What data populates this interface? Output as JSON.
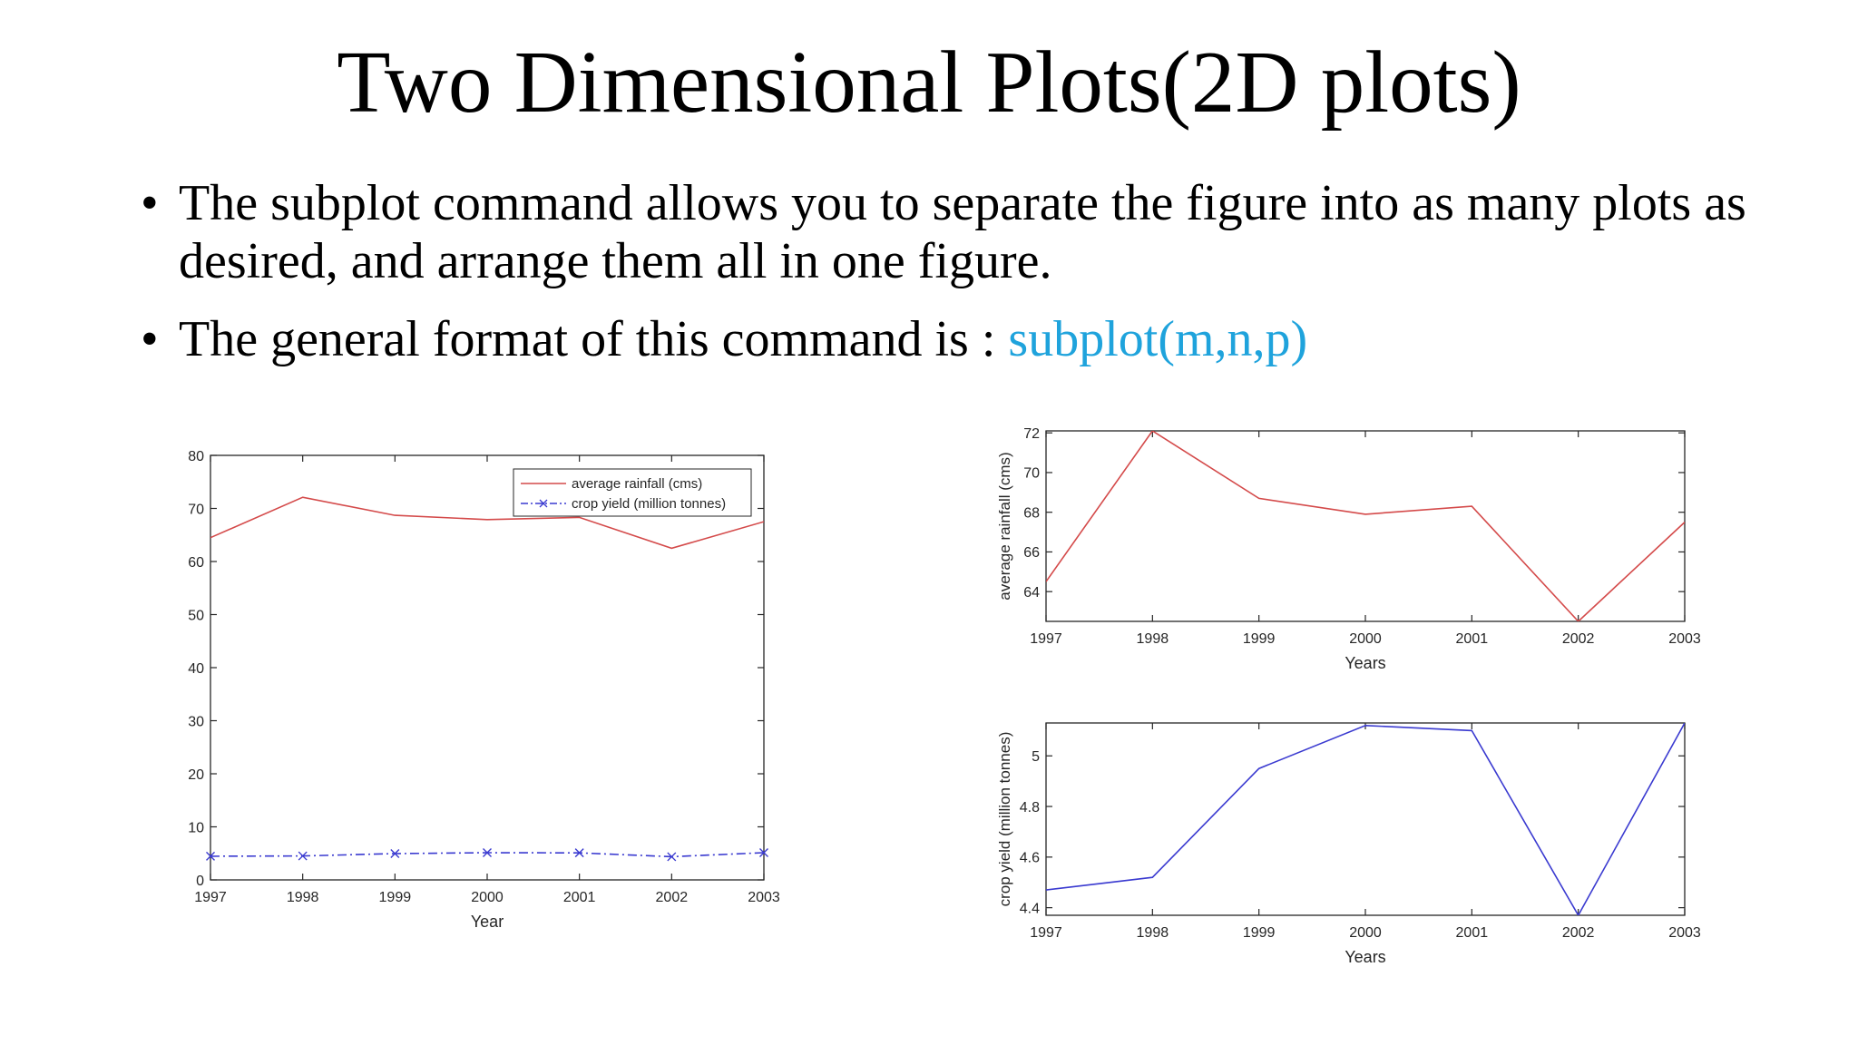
{
  "slide": {
    "title": "Two Dimensional Plots(2D plots)",
    "bullets": [
      {
        "text": "The subplot command allows you to separate the figure into as many plots as desired, and arrange them all in one figure.",
        "code": ""
      },
      {
        "text": "The general format of this command is : ",
        "code": "subplot(m,n,p)"
      }
    ],
    "code_color": "#1fa3dc"
  },
  "chart_data": [
    {
      "type": "line",
      "x": [
        1997,
        1998,
        1999,
        2000,
        2001,
        2002,
        2003
      ],
      "xlabel": "Year",
      "ylabel": "",
      "xlim": [
        1997,
        2003
      ],
      "ylim": [
        0,
        80
      ],
      "yticks": [
        0,
        10,
        20,
        30,
        40,
        50,
        60,
        70,
        80
      ],
      "legend": "top-right",
      "grid": false,
      "series": [
        {
          "name": "average rainfall (cms)",
          "values": [
            64.5,
            72.1,
            68.7,
            67.9,
            68.3,
            62.5,
            67.5
          ],
          "color": "#d44a4a",
          "style": "solid",
          "marker": "none"
        },
        {
          "name": "crop yield (million tonnes)",
          "values": [
            4.47,
            4.52,
            4.95,
            5.12,
            5.1,
            4.37,
            5.13
          ],
          "color": "#3a3ad0",
          "style": "dashdot",
          "marker": "x"
        }
      ]
    },
    {
      "type": "line",
      "x": [
        1997,
        1998,
        1999,
        2000,
        2001,
        2002,
        2003
      ],
      "xlabel": "Years",
      "ylabel": "average rainfall (cms)",
      "xlim": [
        1997,
        2003
      ],
      "ylim": [
        62.5,
        72.1
      ],
      "yticks": [
        64,
        66,
        68,
        70,
        72
      ],
      "grid": false,
      "series": [
        {
          "values": [
            64.5,
            72.1,
            68.7,
            67.9,
            68.3,
            62.5,
            67.5
          ],
          "color": "#d44a4a"
        }
      ]
    },
    {
      "type": "line",
      "x": [
        1997,
        1998,
        1999,
        2000,
        2001,
        2002,
        2003
      ],
      "xlabel": "Years",
      "ylabel": "crop yield (million tonnes)",
      "xlim": [
        1997,
        2003
      ],
      "ylim": [
        4.37,
        5.13
      ],
      "yticks": [
        4.4,
        4.6,
        4.8,
        5
      ],
      "grid": false,
      "series": [
        {
          "values": [
            4.47,
            4.52,
            4.95,
            5.12,
            5.1,
            4.37,
            5.13
          ],
          "color": "#3a3ad0"
        }
      ]
    }
  ]
}
